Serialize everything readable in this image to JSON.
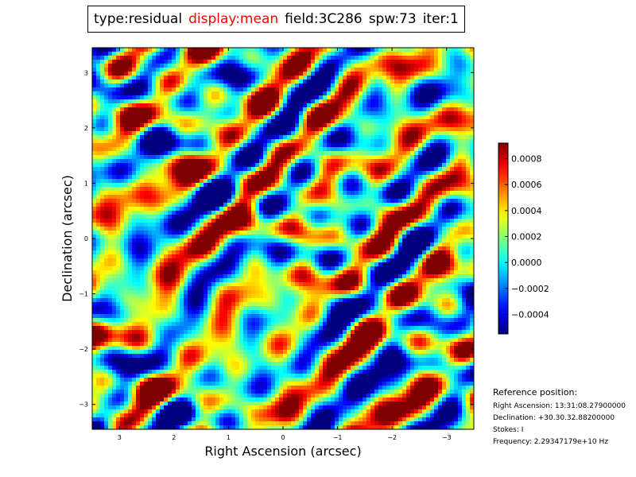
{
  "title_items": [
    {
      "text": "type:residual",
      "color": "#000000"
    },
    {
      "text": "display:mean",
      "color": "#ff0000"
    },
    {
      "text": "field:3C286",
      "color": "#000000"
    },
    {
      "text": "spw:73",
      "color": "#000000"
    },
    {
      "text": "iter:1",
      "color": "#000000"
    }
  ],
  "reference": {
    "title": "Reference position:",
    "lines": [
      "Right Ascension: 13:31:08.27900000",
      "Declination: +30.30.32.88200000",
      "Stokes: I",
      "Frequency: 2.29347179e+10 Hz"
    ]
  },
  "chart_data": {
    "type": "heatmap",
    "xlabel": "Right Ascension (arcsec)",
    "ylabel": "Declination (arcsec)",
    "xlim": [
      3.5,
      -3.5
    ],
    "ylim": [
      -3.45,
      3.45
    ],
    "xticks": [
      3,
      2,
      1,
      0,
      -1,
      -2,
      -3
    ],
    "xtick_labels": [
      "3",
      "2",
      "1",
      "0",
      "−1",
      "−2",
      "−3"
    ],
    "yticks": [
      3,
      2,
      1,
      0,
      -1,
      -2,
      -3
    ],
    "ytick_labels": [
      "3",
      "2",
      "1",
      "0",
      "−1",
      "−2",
      "−3"
    ],
    "colormap": "jet",
    "colorbar": {
      "range": [
        -0.00055,
        0.00092
      ],
      "ticks": [
        -0.0004,
        -0.0002,
        0.0,
        0.0002,
        0.0004,
        0.0006,
        0.0008
      ],
      "tick_labels": [
        "−0.0004",
        "−0.0002",
        "0.0000",
        "0.0002",
        "0.0004",
        "0.0006",
        "0.0008"
      ]
    },
    "grid": false
  }
}
